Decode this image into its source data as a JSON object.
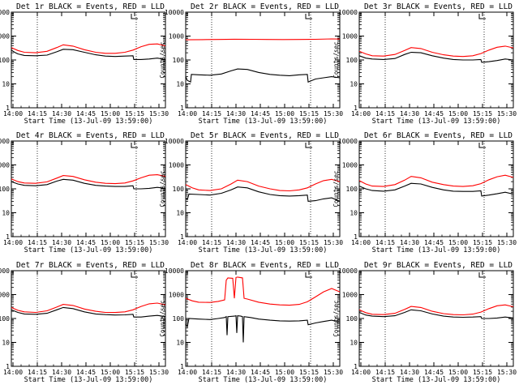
{
  "chart_data": [
    {
      "type": "line",
      "title": "Det 1r BLACK = Events, RED = LLD",
      "ylabel": "Counts/sec",
      "xlabel": "Start Time (13-Jul-09 13:59:00)",
      "x_ticks": [
        "14:00",
        "14:15",
        "14:30",
        "14:45",
        "15:00",
        "15:15",
        "15:30"
      ],
      "y_ticks": [
        "1",
        "10",
        "100",
        "1000",
        "10000"
      ],
      "yscale": "log",
      "ylim": [
        1,
        10000
      ],
      "xlim_minutes": [
        0,
        95
      ],
      "vlines_minutes": [
        16,
        77
      ],
      "series": [
        {
          "color": "#000000",
          "x": [
            0,
            2,
            4,
            8,
            15,
            22,
            28,
            32,
            38,
            45,
            52,
            58,
            64,
            70,
            75,
            75.5,
            80,
            85,
            90,
            95
          ],
          "y": [
            260,
            210,
            180,
            155,
            150,
            160,
            220,
            280,
            270,
            210,
            165,
            145,
            140,
            145,
            150,
            105,
            105,
            110,
            120,
            105
          ]
        },
        {
          "color": "#ff0000",
          "x": [
            0,
            4,
            8,
            15,
            22,
            28,
            32,
            38,
            45,
            52,
            58,
            64,
            70,
            75,
            80,
            85,
            90,
            95
          ],
          "y": [
            330,
            250,
            210,
            200,
            230,
            330,
            430,
            380,
            270,
            210,
            190,
            190,
            210,
            260,
            360,
            450,
            470,
            390
          ]
        }
      ]
    },
    {
      "type": "line",
      "title": "Det 2r BLACK = Events, RED = LLD",
      "ylabel": "Counts/sec",
      "xlabel": "Start Time (13-Jul-09 13:59:00)",
      "x_ticks": [
        "14:00",
        "14:15",
        "14:30",
        "14:45",
        "15:00",
        "15:15",
        "15:30"
      ],
      "y_ticks": [
        "1",
        "10",
        "100",
        "1000",
        "10000"
      ],
      "yscale": "log",
      "ylim": [
        1,
        10000
      ],
      "xlim_minutes": [
        0,
        95
      ],
      "vlines_minutes": [
        16,
        77
      ],
      "series": [
        {
          "color": "#000000",
          "x": [
            0,
            1,
            3,
            3.5,
            8,
            15,
            22,
            28,
            32,
            38,
            45,
            52,
            58,
            64,
            70,
            75,
            75.5,
            80,
            85,
            90,
            95
          ],
          "y": [
            20,
            14,
            12,
            25,
            24,
            23,
            26,
            35,
            42,
            40,
            30,
            25,
            23,
            22,
            24,
            25,
            12,
            16,
            18,
            20,
            18
          ]
        },
        {
          "color": "#ff0000",
          "x": [
            0,
            10,
            20,
            30,
            40,
            50,
            60,
            70,
            80,
            90,
            95
          ],
          "y": [
            700,
            710,
            720,
            740,
            730,
            720,
            715,
            720,
            730,
            760,
            750
          ]
        }
      ]
    },
    {
      "type": "line",
      "title": "Det 3r BLACK = Events, RED = LLD",
      "ylabel": "Counts/sec",
      "xlabel": "Start Time (13-Jul-09 13:59:00)",
      "x_ticks": [
        "14:00",
        "14:15",
        "14:30",
        "14:45",
        "15:00",
        "15:15",
        "15:30"
      ],
      "y_ticks": [
        "1",
        "10",
        "100",
        "1000",
        "10000"
      ],
      "yscale": "log",
      "ylim": [
        1,
        10000
      ],
      "xlim_minutes": [
        0,
        95
      ],
      "vlines_minutes": [
        16,
        77
      ],
      "series": [
        {
          "color": "#000000",
          "x": [
            0,
            4,
            8,
            15,
            22,
            28,
            32,
            38,
            45,
            52,
            58,
            64,
            70,
            75,
            75.5,
            80,
            85,
            90,
            95
          ],
          "y": [
            150,
            120,
            110,
            105,
            115,
            170,
            210,
            200,
            150,
            120,
            105,
            100,
            100,
            105,
            80,
            85,
            95,
            110,
            100
          ]
        },
        {
          "color": "#ff0000",
          "x": [
            0,
            4,
            8,
            15,
            22,
            28,
            32,
            38,
            45,
            52,
            58,
            64,
            70,
            75,
            80,
            85,
            90,
            95
          ],
          "y": [
            230,
            180,
            150,
            145,
            170,
            250,
            330,
            300,
            210,
            165,
            145,
            140,
            150,
            185,
            260,
            340,
            380,
            320
          ]
        }
      ]
    },
    {
      "type": "line",
      "title": "Det 4r BLACK = Events, RED = LLD",
      "ylabel": "Counts/sec",
      "xlabel": "Start Time (13-Jul-09 13:59:00)",
      "x_ticks": [
        "14:00",
        "14:15",
        "14:30",
        "14:45",
        "15:00",
        "15:15",
        "15:30"
      ],
      "y_ticks": [
        "1",
        "10",
        "100",
        "1000",
        "10000"
      ],
      "yscale": "log",
      "ylim": [
        1,
        10000
      ],
      "xlim_minutes": [
        0,
        95
      ],
      "vlines_minutes": [
        16,
        77
      ],
      "series": [
        {
          "color": "#000000",
          "x": [
            0,
            4,
            8,
            15,
            22,
            28,
            32,
            38,
            45,
            52,
            58,
            64,
            70,
            75,
            75.5,
            80,
            85,
            90,
            95
          ],
          "y": [
            200,
            160,
            140,
            135,
            150,
            210,
            250,
            230,
            170,
            140,
            130,
            125,
            125,
            135,
            100,
            100,
            105,
            115,
            105
          ]
        },
        {
          "color": "#ff0000",
          "x": [
            0,
            4,
            8,
            15,
            22,
            28,
            32,
            38,
            45,
            52,
            58,
            64,
            70,
            75,
            80,
            85,
            90,
            95
          ],
          "y": [
            260,
            200,
            175,
            170,
            195,
            280,
            360,
            330,
            240,
            190,
            170,
            165,
            175,
            215,
            290,
            370,
            390,
            330
          ]
        }
      ]
    },
    {
      "type": "line",
      "title": "Det 5r BLACK = Events, RED = LLD",
      "ylabel": "Counts/sec",
      "xlabel": "Start Time (13-Jul-09 13:59:00)",
      "x_ticks": [
        "14:00",
        "14:15",
        "14:30",
        "14:45",
        "15:00",
        "15:15",
        "15:30"
      ],
      "y_ticks": [
        "1",
        "10",
        "100",
        "1000",
        "10000"
      ],
      "yscale": "log",
      "ylim": [
        1,
        10000
      ],
      "xlim_minutes": [
        0,
        95
      ],
      "vlines_minutes": [
        16,
        77
      ],
      "series": [
        {
          "color": "#000000",
          "x": [
            0,
            1,
            2,
            8,
            15,
            22,
            28,
            32,
            38,
            45,
            52,
            58,
            64,
            70,
            75,
            75.5,
            80,
            85,
            90,
            95
          ],
          "y": [
            40,
            35,
            60,
            58,
            55,
            65,
            90,
            120,
            110,
            75,
            58,
            52,
            50,
            52,
            55,
            30,
            32,
            38,
            42,
            30
          ]
        },
        {
          "color": "#ff0000",
          "x": [
            0,
            4,
            8,
            15,
            22,
            28,
            32,
            38,
            45,
            52,
            58,
            64,
            70,
            75,
            80,
            85,
            90,
            95
          ],
          "y": [
            150,
            110,
            90,
            85,
            100,
            160,
            230,
            200,
            130,
            100,
            85,
            82,
            90,
            110,
            160,
            220,
            250,
            200
          ]
        }
      ]
    },
    {
      "type": "line",
      "title": "Det 6r BLACK = Events, RED = LLD",
      "ylabel": "Counts/sec",
      "xlabel": "Start Time (13-Jul-09 13:59:00)",
      "x_ticks": [
        "14:00",
        "14:15",
        "14:30",
        "14:45",
        "15:00",
        "15:15",
        "15:30"
      ],
      "y_ticks": [
        "1",
        "10",
        "100",
        "1000",
        "10000"
      ],
      "yscale": "log",
      "ylim": [
        1,
        10000
      ],
      "xlim_minutes": [
        0,
        95
      ],
      "vlines_minutes": [
        16,
        77
      ],
      "series": [
        {
          "color": "#000000",
          "x": [
            0,
            4,
            8,
            15,
            22,
            28,
            32,
            38,
            45,
            52,
            58,
            64,
            70,
            75,
            75.5,
            80,
            85,
            90,
            95
          ],
          "y": [
            130,
            100,
            85,
            80,
            90,
            130,
            170,
            160,
            115,
            90,
            80,
            78,
            78,
            82,
            50,
            55,
            62,
            72,
            60
          ]
        },
        {
          "color": "#ff0000",
          "x": [
            0,
            4,
            8,
            15,
            22,
            28,
            32,
            38,
            45,
            52,
            58,
            64,
            70,
            75,
            80,
            85,
            90,
            95
          ],
          "y": [
            220,
            160,
            130,
            125,
            150,
            230,
            330,
            290,
            190,
            150,
            130,
            125,
            135,
            165,
            240,
            320,
            370,
            300
          ]
        }
      ]
    },
    {
      "type": "line",
      "title": "Det 7r BLACK = Events, RED = LLD",
      "ylabel": "Counts/sec",
      "xlabel": "Start Time (13-Jul-09 13:59:00)",
      "x_ticks": [
        "14:00",
        "14:15",
        "14:30",
        "14:45",
        "15:00",
        "15:15",
        "15:30"
      ],
      "y_ticks": [
        "1",
        "10",
        "100",
        "1000",
        "10000"
      ],
      "yscale": "log",
      "ylim": [
        1,
        10000
      ],
      "xlim_minutes": [
        0,
        95
      ],
      "vlines_minutes": [
        16,
        77
      ],
      "series": [
        {
          "color": "#000000",
          "x": [
            0,
            4,
            8,
            15,
            22,
            28,
            32,
            38,
            45,
            52,
            58,
            64,
            70,
            75,
            75.5,
            80,
            85,
            90,
            95
          ],
          "y": [
            230,
            180,
            155,
            150,
            165,
            230,
            290,
            260,
            190,
            155,
            145,
            140,
            142,
            150,
            115,
            115,
            125,
            135,
            120
          ]
        },
        {
          "color": "#ff0000",
          "x": [
            0,
            4,
            8,
            15,
            22,
            28,
            32,
            38,
            45,
            52,
            58,
            64,
            70,
            75,
            80,
            85,
            90,
            95
          ],
          "y": [
            290,
            220,
            190,
            180,
            210,
            300,
            390,
            350,
            250,
            200,
            180,
            178,
            190,
            230,
            320,
            410,
            440,
            370
          ]
        }
      ]
    },
    {
      "type": "line",
      "title": "Det 8r BLACK = Events, RED = LLD",
      "ylabel": "Counts/sec",
      "xlabel": "Start Time (13-Jul-09 13:59:00)",
      "x_ticks": [
        "14:00",
        "14:15",
        "14:30",
        "14:45",
        "15:00",
        "15:15",
        "15:30"
      ],
      "y_ticks": [
        "1",
        "10",
        "100",
        "1000",
        "10000"
      ],
      "yscale": "log",
      "ylim": [
        1,
        10000
      ],
      "xlim_minutes": [
        0,
        95
      ],
      "vlines_minutes": [
        16,
        77
      ],
      "series": [
        {
          "color": "#000000",
          "x": [
            0,
            1,
            2,
            8,
            15,
            20,
            24,
            25,
            25.5,
            26,
            30,
            31,
            31.5,
            32,
            34,
            35,
            35.5,
            36,
            40,
            45,
            52,
            58,
            64,
            70,
            75,
            75.5,
            80,
            85,
            90,
            95
          ],
          "y": [
            60,
            45,
            100,
            95,
            90,
            100,
            110,
            120,
            20,
            120,
            125,
            130,
            25,
            130,
            125,
            120,
            10,
            120,
            110,
            95,
            85,
            80,
            78,
            80,
            85,
            55,
            65,
            75,
            85,
            70
          ]
        },
        {
          "color": "#ff0000",
          "x": [
            0,
            4,
            8,
            15,
            20,
            24,
            25,
            26,
            29,
            30,
            31,
            32,
            35,
            36,
            38,
            45,
            52,
            58,
            64,
            70,
            75,
            80,
            85,
            90,
            95
          ],
          "y": [
            700,
            550,
            480,
            470,
            520,
            600,
            4000,
            5000,
            4800,
            700,
            5200,
            5400,
            5000,
            700,
            650,
            480,
            400,
            370,
            360,
            390,
            500,
            800,
            1300,
            1800,
            1300
          ]
        }
      ]
    },
    {
      "type": "line",
      "title": "Det 9r BLACK = Events, RED = LLD",
      "ylabel": "Counts/sec",
      "xlabel": "Start Time (13-Jul-09 13:59:00)",
      "x_ticks": [
        "14:00",
        "14:15",
        "14:30",
        "14:45",
        "15:00",
        "15:15",
        "15:30"
      ],
      "y_ticks": [
        "1",
        "10",
        "100",
        "1000",
        "10000"
      ],
      "yscale": "log",
      "ylim": [
        1,
        10000
      ],
      "xlim_minutes": [
        0,
        95
      ],
      "vlines_minutes": [
        16,
        77
      ],
      "series": [
        {
          "color": "#000000",
          "x": [
            0,
            4,
            8,
            15,
            22,
            28,
            32,
            38,
            45,
            52,
            58,
            64,
            70,
            75,
            75.5,
            80,
            85,
            90,
            95
          ],
          "y": [
            180,
            140,
            125,
            120,
            130,
            180,
            230,
            210,
            155,
            125,
            115,
            112,
            115,
            120,
            100,
            100,
            105,
            115,
            105
          ]
        },
        {
          "color": "#ff0000",
          "x": [
            0,
            4,
            8,
            15,
            22,
            28,
            32,
            38,
            45,
            52,
            58,
            64,
            70,
            75,
            80,
            85,
            90,
            95
          ],
          "y": [
            230,
            175,
            150,
            145,
            165,
            240,
            320,
            290,
            200,
            160,
            145,
            142,
            152,
            185,
            260,
            340,
            370,
            310
          ]
        }
      ]
    }
  ]
}
